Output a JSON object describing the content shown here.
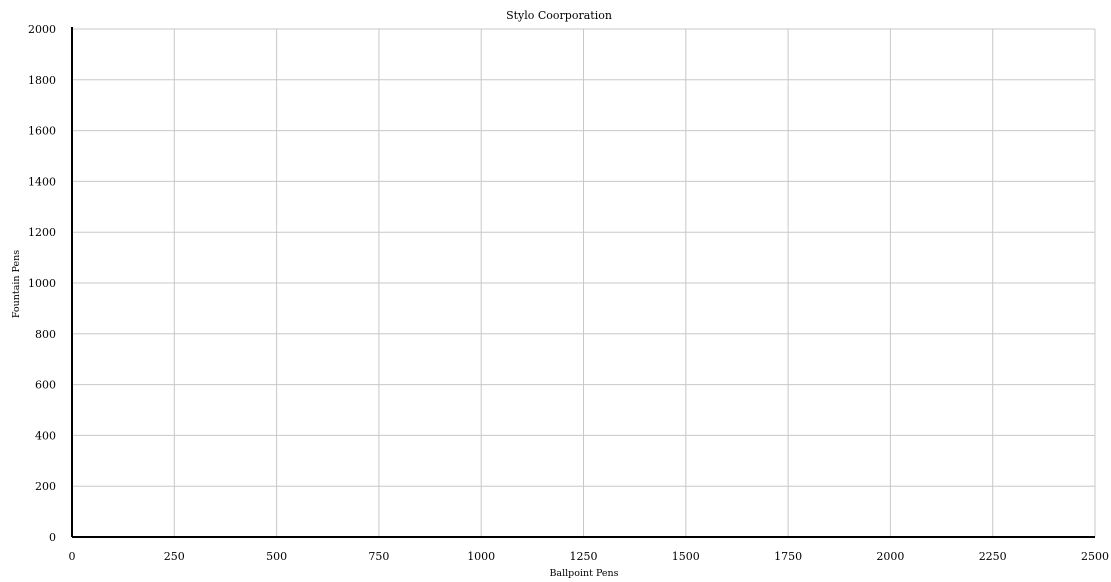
{
  "chart_data": {
    "type": "scatter",
    "title": "Stylo Coorporation",
    "xlabel": "Ballpoint Pens",
    "ylabel": "Fountain Pens",
    "xlim": [
      0,
      2500
    ],
    "ylim": [
      0,
      2000
    ],
    "x_ticks": [
      "0",
      "250",
      "500",
      "750",
      "1000",
      "1250",
      "1500",
      "1750",
      "2000",
      "2250",
      "2500"
    ],
    "y_ticks": [
      "0",
      "200",
      "400",
      "600",
      "800",
      "1000",
      "1200",
      "1400",
      "1600",
      "1800",
      "2000"
    ],
    "grid": true,
    "series": [],
    "colors": {
      "grid": "#c8c8c8",
      "axis": "#000000",
      "background": "#ffffff"
    }
  }
}
